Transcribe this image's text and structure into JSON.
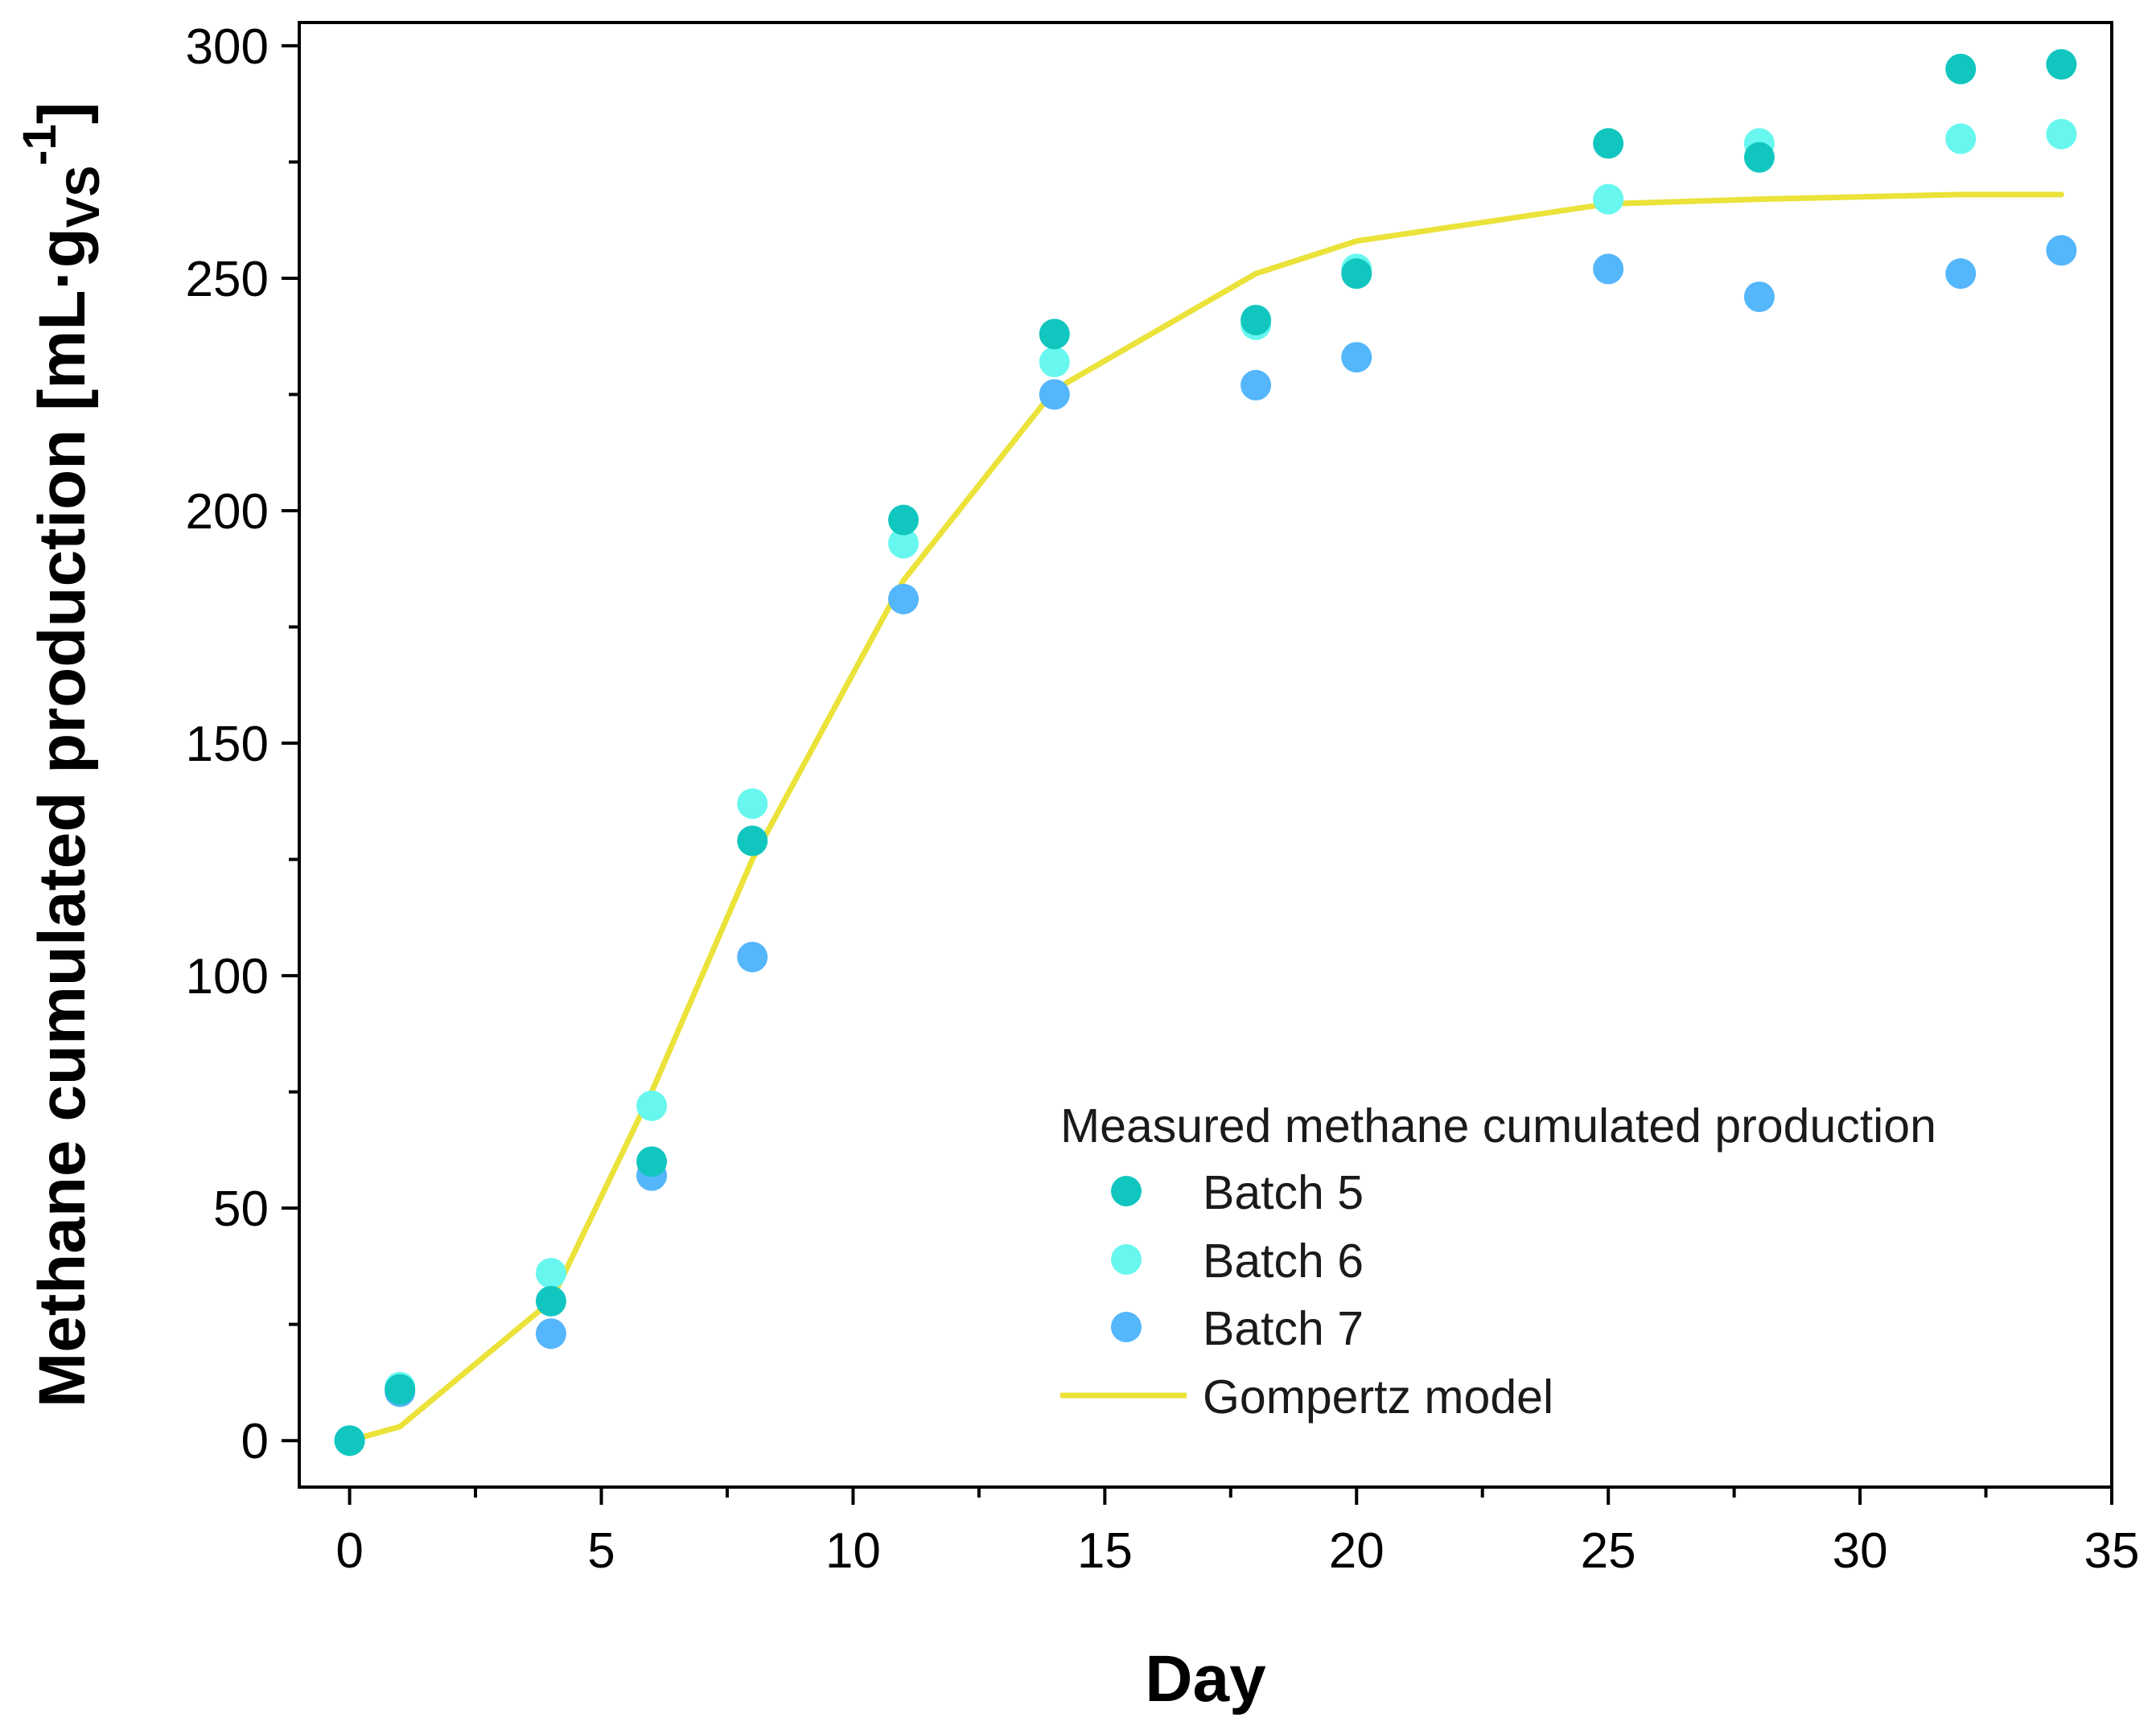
{
  "colors": {
    "batch5": "#12c6c0",
    "batch6": "#67f7ef",
    "batch7": "#54b6fb",
    "model": "#ebe23a",
    "axis": "#000000"
  },
  "chart_data": {
    "type": "scatter",
    "title": "",
    "xlabel": "Day",
    "ylabel_main": "Methane cumulated production [mL·g",
    "ylabel_sub": "VS",
    "ylabel_sup": "-1",
    "ylabel_close": "]",
    "xlim": [
      -1,
      35
    ],
    "ylim": [
      -10,
      305
    ],
    "x_ticks": [
      0,
      5,
      10,
      15,
      20,
      25,
      30,
      35
    ],
    "x_tick_labels": [
      "0",
      "5",
      "10",
      "15",
      "20",
      "25",
      "30",
      "35"
    ],
    "x_minor_ticks": [
      2.5,
      7.5,
      12.5,
      17.5,
      22.5,
      27.5,
      32.5
    ],
    "y_ticks": [
      0,
      50,
      100,
      150,
      200,
      250,
      300
    ],
    "y_tick_labels": [
      "0",
      "50",
      "100",
      "150",
      "200",
      "250",
      "300"
    ],
    "y_minor_ticks": [
      25,
      75,
      125,
      175,
      225,
      275
    ],
    "grid": false,
    "legend": {
      "title": "Measured methane cumulated production",
      "placement": "bottom-right",
      "entries": [
        "Batch 5",
        "Batch 6",
        "Batch 7",
        "Gompertz model"
      ]
    },
    "series": [
      {
        "name": "Batch 5",
        "kind": "scatter",
        "color_key": "batch5",
        "x": [
          0,
          1,
          4,
          6,
          8,
          11,
          14,
          18,
          20,
          25,
          28,
          32,
          34
        ],
        "y": [
          0,
          11,
          30,
          60,
          129,
          198,
          238,
          241,
          251,
          279,
          276,
          295,
          296
        ]
      },
      {
        "name": "Batch 6",
        "kind": "scatter",
        "color_key": "batch6",
        "x": [
          0,
          1,
          4,
          6,
          8,
          11,
          14,
          18,
          20,
          25,
          28,
          32,
          34
        ],
        "y": [
          0,
          11.5,
          36,
          72,
          137,
          193,
          232,
          240,
          252,
          267,
          279,
          280,
          281
        ]
      },
      {
        "name": "Batch 7",
        "kind": "scatter",
        "color_key": "batch7",
        "x": [
          0,
          1,
          4,
          6,
          8,
          11,
          14,
          18,
          20,
          25,
          28,
          32,
          34
        ],
        "y": [
          0,
          10.5,
          23,
          57,
          104,
          181,
          225,
          227,
          233,
          252,
          246,
          251,
          256
        ]
      },
      {
        "name": "Gompertz model",
        "kind": "line",
        "color_key": "model",
        "x": [
          0,
          1,
          4,
          6,
          8,
          11,
          14,
          18,
          20,
          25,
          28,
          32,
          34
        ],
        "y": [
          0,
          3,
          30,
          75,
          125,
          185,
          226,
          251,
          258,
          266,
          267,
          268,
          268
        ]
      }
    ]
  }
}
